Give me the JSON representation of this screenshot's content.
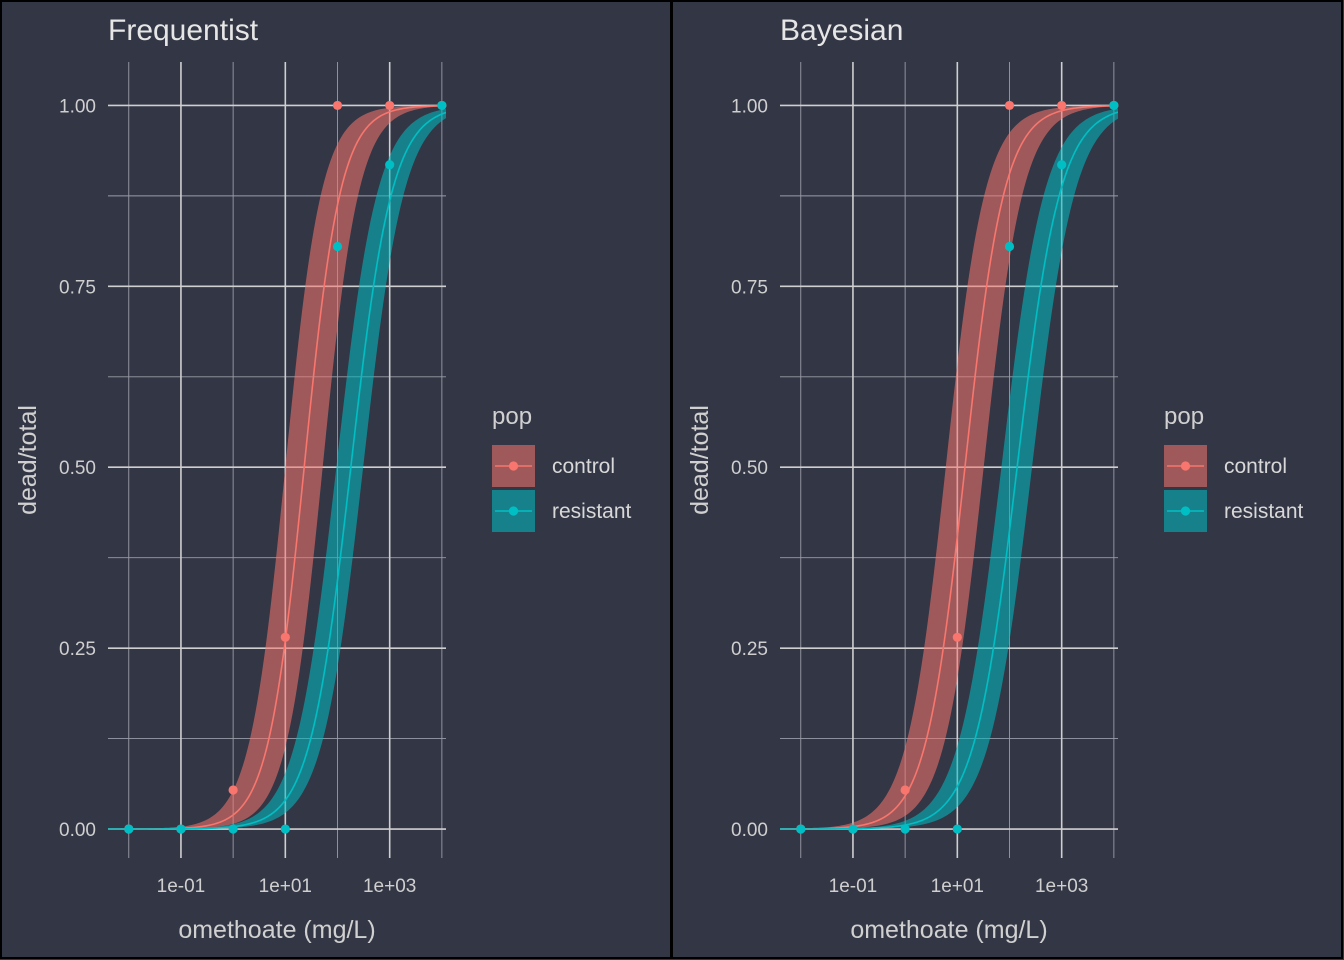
{
  "chart_data": [
    {
      "type": "line",
      "title": "Frequentist",
      "xlabel": "omethoate (mg/L)",
      "ylabel": "dead/total",
      "x_scale": "log10",
      "x_ticks": [
        0.1,
        10,
        1000
      ],
      "x_tick_labels": [
        "1e-01",
        "1e+01",
        "1e+03"
      ],
      "xlim": [
        0.004,
        12000
      ],
      "y_ticks": [
        0,
        0.25,
        0.5,
        0.75,
        1
      ],
      "y_tick_labels": [
        "0.00",
        "0.25",
        "0.50",
        "0.75",
        "1.00"
      ],
      "ylim": [
        -0.04,
        1.06
      ],
      "grid": true,
      "legend": {
        "title": "pop",
        "placement": "right",
        "entries": [
          "control",
          "resistant"
        ]
      },
      "series": [
        {
          "name": "control",
          "color": "#F8766D",
          "points": [
            [
              0.01,
              0
            ],
            [
              0.1,
              0
            ],
            [
              1,
              0.054
            ],
            [
              10,
              0.265
            ],
            [
              100,
              1
            ],
            [
              1000,
              1
            ],
            [
              10000,
              1
            ]
          ],
          "curve": {
            "ec50": 23,
            "slope": 1.25
          },
          "band": {
            "ec50_low": 10,
            "ec50_high": 52,
            "slope": 1.25
          }
        },
        {
          "name": "resistant",
          "color": "#00BFC4",
          "points": [
            [
              0.01,
              0
            ],
            [
              0.1,
              0
            ],
            [
              1,
              0
            ],
            [
              10,
              0
            ],
            [
              100,
              0.805
            ],
            [
              1000,
              0.918
            ],
            [
              10000,
              1
            ]
          ],
          "curve": {
            "ec50": 180,
            "slope": 1.1
          },
          "band": {
            "ec50_low": 95,
            "ec50_high": 310,
            "slope": 1.1
          }
        }
      ]
    },
    {
      "type": "line",
      "title": "Bayesian",
      "xlabel": "omethoate (mg/L)",
      "ylabel": "dead/total",
      "x_scale": "log10",
      "x_ticks": [
        0.1,
        10,
        1000
      ],
      "x_tick_labels": [
        "1e-01",
        "1e+01",
        "1e+03"
      ],
      "xlim": [
        0.004,
        12000
      ],
      "y_ticks": [
        0,
        0.25,
        0.5,
        0.75,
        1
      ],
      "y_tick_labels": [
        "0.00",
        "0.25",
        "0.50",
        "0.75",
        "1.00"
      ],
      "ylim": [
        -0.04,
        1.06
      ],
      "grid": true,
      "legend": {
        "title": "pop",
        "placement": "right",
        "entries": [
          "control",
          "resistant"
        ]
      },
      "series": [
        {
          "name": "control",
          "color": "#F8766D",
          "points": [
            [
              0.01,
              0
            ],
            [
              0.1,
              0
            ],
            [
              1,
              0.054
            ],
            [
              10,
              0.265
            ],
            [
              100,
              1
            ],
            [
              1000,
              1
            ],
            [
              10000,
              1
            ]
          ],
          "curve": {
            "ec50": 14,
            "slope": 1.15
          },
          "band": {
            "ec50_low": 6,
            "ec50_high": 32,
            "slope": 1.15
          }
        },
        {
          "name": "resistant",
          "color": "#00BFC4",
          "points": [
            [
              0.01,
              0
            ],
            [
              0.1,
              0
            ],
            [
              1,
              0
            ],
            [
              10,
              0
            ],
            [
              100,
              0.805
            ],
            [
              1000,
              0.918
            ],
            [
              10000,
              1
            ]
          ],
          "curve": {
            "ec50": 140,
            "slope": 1.05
          },
          "band": {
            "ec50_low": 70,
            "ec50_high": 270,
            "slope": 1.05
          }
        }
      ]
    }
  ]
}
